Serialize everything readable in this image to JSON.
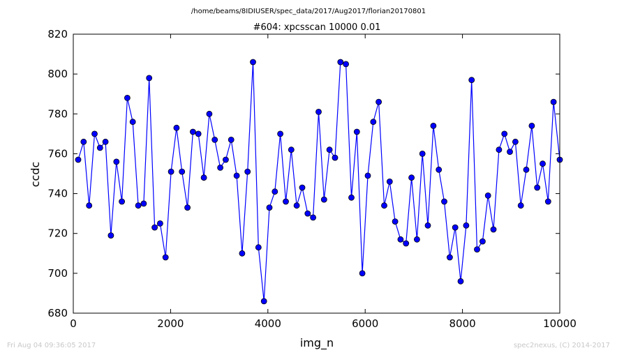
{
  "header": {
    "path": "/home/beams/8IDIUSER/spec_data/2017/Aug2017/florian20170801",
    "scan_title": "#604: xpcsscan 10000 0.01"
  },
  "footer": {
    "timestamp": "Fri Aug 04 09:36:05 2017",
    "credit": "spec2nexus, (C) 2014-2017"
  },
  "chart_data": {
    "type": "line",
    "title": "#604: xpcsscan 10000 0.01",
    "xlabel": "img_n",
    "ylabel": "ccdc",
    "xlim": [
      0,
      10000
    ],
    "ylim": [
      680,
      820
    ],
    "xticks": [
      0,
      2000,
      4000,
      6000,
      8000,
      10000
    ],
    "yticks": [
      680,
      700,
      720,
      740,
      760,
      780,
      800,
      820
    ],
    "grid": false,
    "marker": "circle",
    "line_color": "#0000ff",
    "marker_color": "#0000ff",
    "series": [
      {
        "x": [
          100,
          212,
          325,
          437,
          549,
          662,
          774,
          886,
          999,
          1111,
          1223,
          1336,
          1448,
          1560,
          1673,
          1785,
          1897,
          2010,
          2122,
          2234,
          2347,
          2459,
          2571,
          2684,
          2796,
          2908,
          3021,
          3133,
          3245,
          3358,
          3470,
          3582,
          3695,
          3807,
          3919,
          4032,
          4144,
          4256,
          4369,
          4481,
          4593,
          4706,
          4818,
          4930,
          5043,
          5155,
          5267,
          5380,
          5492,
          5604,
          5717,
          5829,
          5941,
          6054,
          6166,
          6278,
          6391,
          6503,
          6615,
          6728,
          6840,
          6952,
          7065,
          7177,
          7289,
          7402,
          7514,
          7626,
          7739,
          7851,
          7963,
          8076,
          8188,
          8300,
          8413,
          8525,
          8637,
          8750,
          8862,
          8974,
          9087,
          9199,
          9311,
          9424,
          9536,
          9648,
          9761,
          9873,
          10000
        ],
        "y": [
          757,
          766,
          734,
          770,
          763,
          766,
          719,
          756,
          736,
          788,
          776,
          734,
          735,
          798,
          723,
          725,
          708,
          751,
          773,
          751,
          733,
          771,
          770,
          748,
          780,
          767,
          753,
          757,
          767,
          749,
          710,
          751,
          806,
          713,
          686,
          733,
          741,
          770,
          736,
          762,
          734,
          743,
          730,
          728,
          781,
          737,
          762,
          758,
          806,
          805,
          738,
          771,
          700,
          749,
          776,
          786,
          734,
          746,
          726,
          717,
          715,
          748,
          717,
          760,
          724,
          774,
          752,
          736,
          708,
          723,
          696,
          724,
          797,
          712,
          716,
          739,
          722,
          762,
          770,
          761,
          766,
          734,
          752,
          774,
          743,
          755,
          736,
          786,
          757
        ]
      }
    ]
  }
}
